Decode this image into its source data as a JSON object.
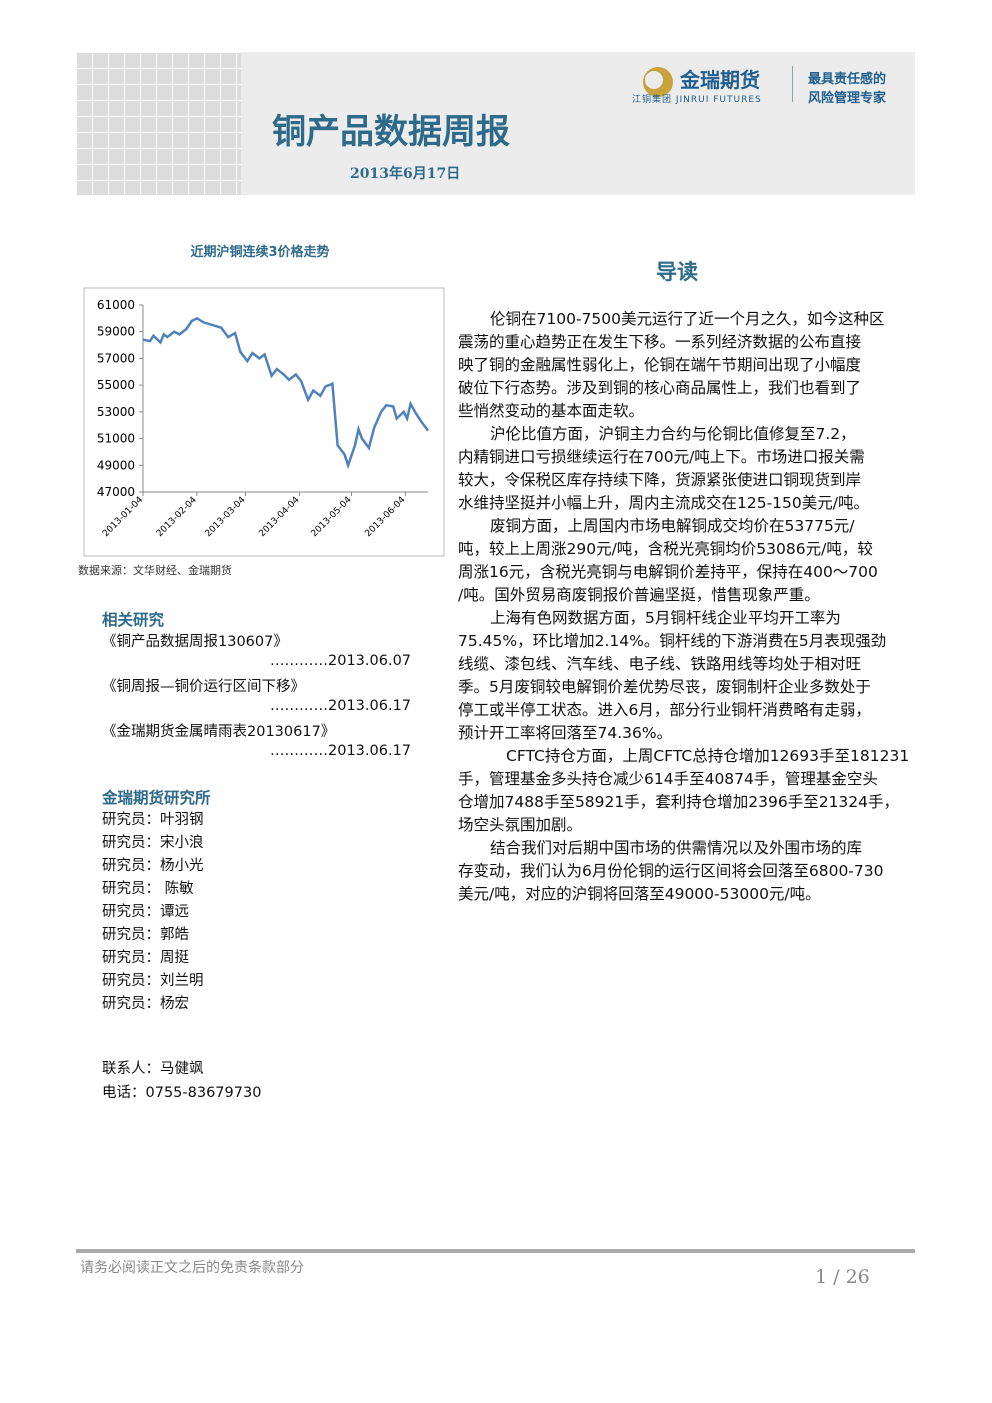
{
  "header": {
    "title": "铜产品数据周报",
    "date": "2013年6月17日",
    "logo": "金瑞期货",
    "logo_sub": "江铜集团 JINRUI FUTURES",
    "slogan": [
      "最具责任感的",
      "风险管理专家"
    ]
  },
  "chart_data": {
    "type": "line",
    "title": "近期沪铜连续3价格走势",
    "color": "#4f81bd",
    "x": [
      "2013-01-04",
      "2013-01-08",
      "2013-01-10",
      "2013-01-14",
      "2013-01-16",
      "2013-01-18",
      "2013-01-22",
      "2013-01-25",
      "2013-01-29",
      "2013-02-01",
      "2013-02-04",
      "2013-02-08",
      "2013-02-18",
      "2013-02-22",
      "2013-02-26",
      "2013-03-01",
      "2013-03-05",
      "2013-03-08",
      "2013-03-12",
      "2013-03-15",
      "2013-03-19",
      "2013-03-22",
      "2013-03-26",
      "2013-03-29",
      "2013-04-02",
      "2013-04-05",
      "2013-04-09",
      "2013-04-12",
      "2013-04-16",
      "2013-04-19",
      "2013-04-23",
      "2013-04-25",
      "2013-04-26",
      "2013-04-30",
      "2013-05-02",
      "2013-05-06",
      "2013-05-08",
      "2013-05-10",
      "2013-05-14",
      "2013-05-17",
      "2013-05-21",
      "2013-05-24",
      "2013-05-28",
      "2013-05-30",
      "2013-06-03",
      "2013-06-05",
      "2013-06-07",
      "2013-06-10",
      "2013-06-13",
      "2013-06-17"
    ],
    "values": [
      58400,
      58300,
      58700,
      58200,
      58800,
      58600,
      59000,
      58800,
      59200,
      59800,
      60000,
      59700,
      59300,
      58600,
      58900,
      57500,
      56800,
      57400,
      57000,
      57300,
      55700,
      56200,
      55800,
      55400,
      55800,
      55300,
      53900,
      54600,
      54200,
      54900,
      55100,
      52000,
      50500,
      49800,
      49000,
      50500,
      51700,
      51000,
      50300,
      51800,
      53000,
      53500,
      53400,
      52500,
      53000,
      52500,
      53600,
      52900,
      52300,
      51600
    ],
    "xlim": [
      "2013-01-04",
      "2013-06-17"
    ],
    "xticks": [
      "2013-01-04",
      "2013-02-04",
      "2013-03-04",
      "2013-04-04",
      "2013-05-04",
      "2013-06-04"
    ],
    "ylim": [
      47000,
      61000
    ],
    "yticks": [
      47000,
      49000,
      51000,
      53000,
      55000,
      57000,
      59000,
      61000
    ],
    "source": "数据来源：文华财经、金瑞期货"
  },
  "intro": {
    "heading": "导读",
    "paragraphs": [
      [
        "伦铜在7100-7500美元运行了近一个月之久，如今这种区",
        "震荡的重心趋势正在发生下移。一系列经济数据的公布直接",
        "映了铜的金融属性弱化上，伦铜在端午节期间出现了小幅度",
        "破位下行态势。涉及到铜的核心商品属性上，我们也看到了",
        "些悄然变动的基本面走软。"
      ],
      [
        "沪伦比值方面，沪铜主力合约与伦铜比值修复至7.2，",
        "内精铜进口亏损继续运行在700元/吨上下。市场进口报关需",
        "较大，令保税区库存持续下降，货源紧张使进口铜现货到岸",
        "水维持坚挺并小幅上升，周内主流成交在125-150美元/吨。"
      ],
      [
        "废铜方面，上周国内市场电解铜成交均价在53775元/",
        "吨，较上上周涨290元/吨，含税光亮铜均价53086元/吨，较",
        "周涨16元，含税光亮铜与电解铜价差持平，保持在400～700",
        "/吨。国外贸易商废铜报价普遍坚挺，惜售现象严重。"
      ],
      [
        "上海有色网数据方面，5月铜杆线企业平均开工率为",
        "75.45%，环比增加2.14%。铜杆线的下游消费在5月表现强劲",
        "线缆、漆包线、汽车线、电子线、铁路用线等均处于相对旺",
        "季。5月废铜较电解铜价差优势尽丧，废铜制杆企业多数处于",
        "停工或半停工状态。进入6月，部分行业铜杆消费略有走弱，",
        "预计开工率将回落至74.36%。"
      ],
      [
        "CFTC持仓方面，上周CFTC总持仓增加12693手至181231",
        "手，管理基金多头持仓减少614手至40874手，管理基金空头",
        "仓增加7488手至58921手，套利持仓增加2396手至21324手，",
        "场空头氛围加剧。"
      ],
      [
        "结合我们对后期中国市场的供需情况以及外围市场的库",
        "存变动，我们认为6月份伦铜的运行区间将会回落至6800-730",
        "美元/吨，对应的沪铜将回落至49000-53000元/吨。"
      ]
    ]
  },
  "related": {
    "heading": "相关研究",
    "items": [
      {
        "title": "《铜产品数据周报130607》",
        "date": "…………2013.06.07"
      },
      {
        "title": "《铜周报—铜价运行区间下移》",
        "date": "…………2013.06.17"
      },
      {
        "title": "《金瑞期货金属晴雨表20130617》",
        "date": "…………2013.06.17"
      }
    ]
  },
  "institute": {
    "heading": "金瑞期货研究所",
    "researchers": [
      "研究员：叶羽钢",
      "研究员：宋小浪",
      "研究员：杨小光",
      "研究员： 陈敏",
      "研究员：谭远",
      "研究员：郭皓",
      "研究员：周挺",
      "研究员：刘兰明",
      "研究员：杨宏"
    ]
  },
  "contact": {
    "person": "联系人：马健飒",
    "phone": "电话：0755-83679730"
  },
  "footer": {
    "disclaimer": "请务必阅读正文之后的免责条款部分",
    "page": "1 / 26"
  }
}
